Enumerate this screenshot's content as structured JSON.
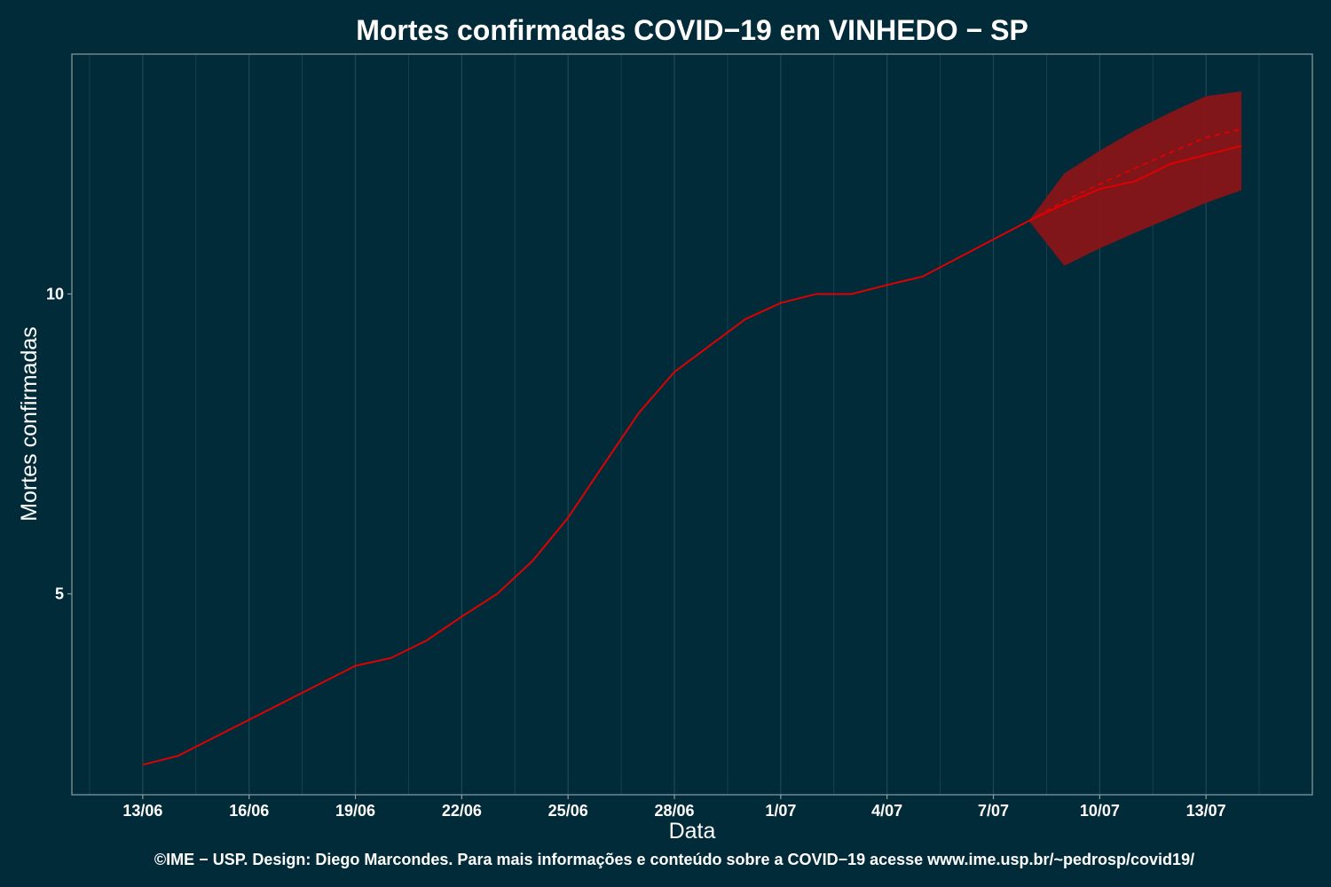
{
  "colors": {
    "background": "#022b3a",
    "grid": "#1c4652",
    "panel_border": "#8a9ea4",
    "line": "#e00000",
    "band": "#8b1418"
  },
  "chart_data": {
    "type": "line",
    "title": "Mortes confirmadas COVID−19 em VINHEDO − SP",
    "xlabel": "Data",
    "ylabel": "Mortes confirmadas",
    "caption": "©IME − USP. Design: Diego Marcondes. Para mais informações e conteúdo sobre a COVID−19 acesse www.ime.usp.br/~pedrosp/covid19/",
    "x_ticks": [
      "13/06",
      "16/06",
      "19/06",
      "22/06",
      "25/06",
      "28/06",
      "1/07",
      "4/07",
      "7/07",
      "10/07",
      "13/07"
    ],
    "x_tick_dates": [
      "2020-06-13",
      "2020-06-16",
      "2020-06-19",
      "2020-06-22",
      "2020-06-25",
      "2020-06-28",
      "2020-07-01",
      "2020-07-04",
      "2020-07-07",
      "2020-07-10",
      "2020-07-13"
    ],
    "y_ticks": [
      5,
      10
    ],
    "y_tick_labels": [
      "5",
      "10"
    ],
    "xlim": [
      "2020-06-11",
      "2020-07-16"
    ],
    "ylim": [
      1.65,
      14.0
    ],
    "grid": "vertical",
    "observed": {
      "x": [
        "2020-06-13",
        "2020-06-14",
        "2020-06-15",
        "2020-06-16",
        "2020-06-17",
        "2020-06-18",
        "2020-06-19",
        "2020-06-20",
        "2020-06-21",
        "2020-06-22",
        "2020-06-23",
        "2020-06-24",
        "2020-06-25",
        "2020-06-26",
        "2020-06-27",
        "2020-06-28",
        "2020-06-29",
        "2020-06-30",
        "2020-07-01",
        "2020-07-02",
        "2020-07-03",
        "2020-07-04",
        "2020-07-05",
        "2020-07-06",
        "2020-07-07",
        "2020-07-08"
      ],
      "y": [
        2.15,
        2.3,
        2.6,
        2.9,
        3.2,
        3.5,
        3.8,
        3.93,
        4.22,
        4.62,
        5.0,
        5.55,
        6.27,
        7.15,
        8.02,
        8.7,
        9.14,
        9.58,
        9.85,
        10.0,
        10.0,
        10.15,
        10.29,
        10.6,
        10.91,
        11.22
      ]
    },
    "forecast": {
      "x": [
        "2020-07-08",
        "2020-07-09",
        "2020-07-10",
        "2020-07-11",
        "2020-07-12",
        "2020-07-13",
        "2020-07-14"
      ],
      "y": [
        11.22,
        11.5,
        11.75,
        11.88,
        12.17,
        12.32,
        12.47
      ],
      "trend": [
        11.22,
        11.55,
        11.83,
        12.1,
        12.36,
        12.61,
        12.75
      ],
      "lower": [
        11.22,
        10.47,
        10.76,
        11.02,
        11.27,
        11.52,
        11.73
      ],
      "upper": [
        11.22,
        12.01,
        12.39,
        12.73,
        13.03,
        13.3,
        13.38
      ]
    }
  }
}
